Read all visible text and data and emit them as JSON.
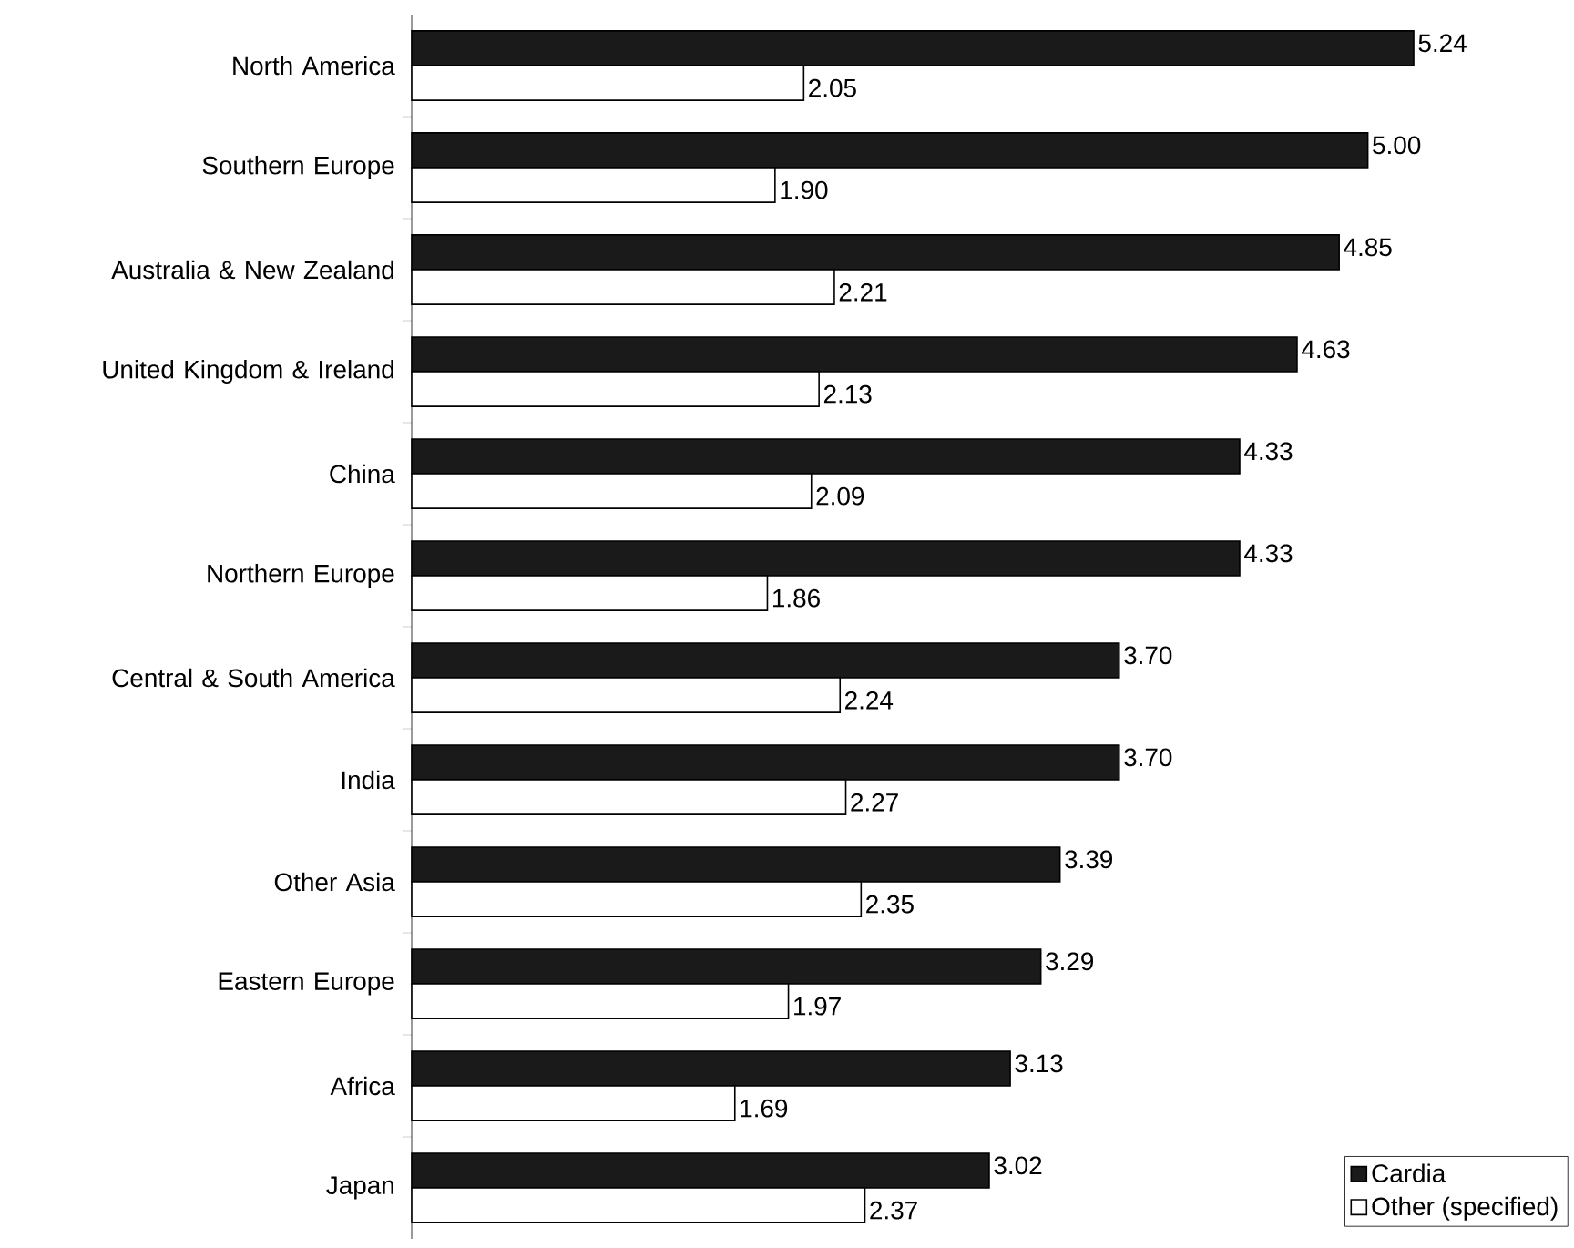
{
  "chart_data": {
    "type": "bar",
    "orientation": "horizontal",
    "legend": "bottom right",
    "categories": [
      "North America",
      "Southern Europe",
      "Australia & New Zealand",
      "United Kingdom & Ireland",
      "China",
      "Northern Europe",
      "Central & South America",
      "India",
      "Other Asia",
      "Eastern Europe",
      "Africa",
      "Japan"
    ],
    "series": [
      {
        "name": "Cardia",
        "color": "#1a1a1a",
        "values": [
          5.24,
          5.0,
          4.85,
          4.63,
          4.33,
          4.33,
          3.7,
          3.7,
          3.39,
          3.29,
          3.13,
          3.02
        ],
        "value_labels": [
          "5.24",
          "5.00",
          "4.85",
          "4.63",
          "4.33",
          "4.33",
          "3.70",
          "3.70",
          "3.39",
          "3.29",
          "3.13",
          "3.02"
        ]
      },
      {
        "name": "Other (specified)",
        "color": "#ffffff",
        "values": [
          2.05,
          1.9,
          2.21,
          2.13,
          2.09,
          1.86,
          2.24,
          2.27,
          2.35,
          1.97,
          1.69,
          2.37
        ],
        "value_labels": [
          "2.05",
          "1.90",
          "2.21",
          "2.13",
          "2.09",
          "1.86",
          "2.24",
          "2.27",
          "2.35",
          "1.97",
          "1.69",
          "2.37"
        ]
      }
    ]
  }
}
